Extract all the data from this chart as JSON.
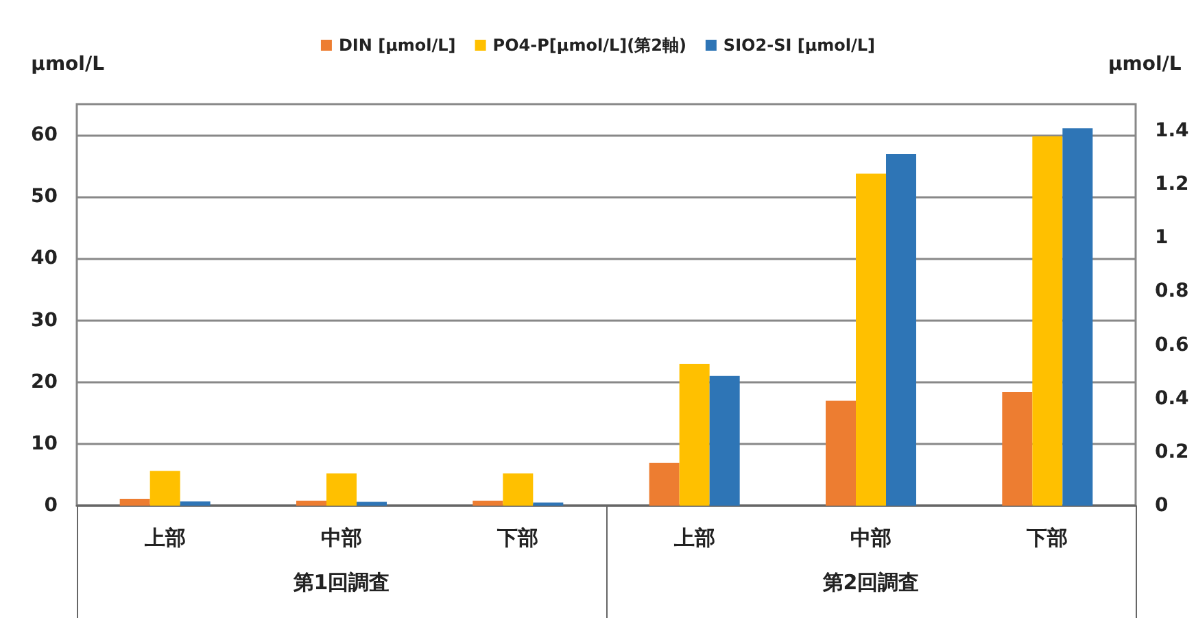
{
  "chart_data": {
    "type": "bar",
    "ylabel": "µmol/L",
    "y2label": "µmol/L",
    "categories": [
      "上部",
      "中部",
      "下部",
      "上部",
      "中部",
      "下部"
    ],
    "series": [
      {
        "name": "DIN [µmol/L]",
        "color": "#ed7d31",
        "values": [
          1.1,
          0.8,
          0.8,
          6.9,
          17.0,
          18.4
        ]
      },
      {
        "name": "PO4-P[µmol/L](第2軸)",
        "color": "#ffc000",
        "axis": "y2",
        "values": [
          0.13,
          0.12,
          0.12,
          0.53,
          1.24,
          1.38
        ]
      },
      {
        "name": "SIO2-SI [µmol/L]",
        "color": "#2e75b6",
        "values": [
          0.7,
          0.6,
          0.5,
          21.0,
          56.9,
          61.1
        ]
      }
    ],
    "ylim": [
      0,
      65
    ],
    "yticks": [
      0,
      10,
      20,
      30,
      40,
      50,
      60
    ],
    "y2lim": [
      0,
      1.5
    ],
    "y2ticks": [
      0,
      0.2,
      0.4,
      0.6,
      0.8,
      1,
      1.2,
      1.4
    ],
    "annotations": [
      "第1回調査",
      "第2回調査"
    ],
    "grid": "y",
    "legend": "top"
  }
}
